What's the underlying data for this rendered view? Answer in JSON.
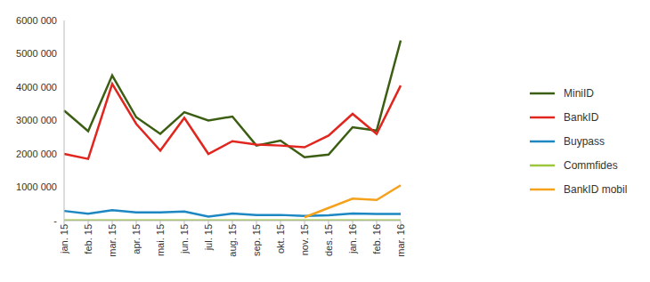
{
  "chart_data": {
    "type": "line",
    "categories": [
      "jan. 15",
      "feb. 15",
      "mar. 15",
      "apr. 15",
      "mai. 15",
      "jun. 15",
      "jul. 15",
      "aug. 15",
      "sep. 15",
      "okt. 15",
      "nov. 15",
      "des. 15",
      "jan. 16",
      "feb. 16",
      "mar. 16"
    ],
    "series": [
      {
        "name": "MiniID",
        "color": "#3b5e12",
        "values": [
          3300000,
          2680000,
          4350000,
          3100000,
          2600000,
          3250000,
          3000000,
          3120000,
          2250000,
          2400000,
          1900000,
          1980000,
          2800000,
          2700000,
          5400000
        ]
      },
      {
        "name": "BankID",
        "color": "#e0261f",
        "values": [
          2000000,
          1850000,
          4100000,
          2900000,
          2100000,
          3080000,
          2000000,
          2380000,
          2280000,
          2250000,
          2200000,
          2550000,
          3200000,
          2600000,
          4050000
        ]
      },
      {
        "name": "Buypass",
        "color": "#1d87c2",
        "values": [
          290000,
          210000,
          310000,
          250000,
          250000,
          270000,
          120000,
          210000,
          170000,
          170000,
          140000,
          160000,
          210000,
          200000,
          200000
        ]
      },
      {
        "name": "Commfides",
        "color": "#9cc63d",
        "values": [
          10000,
          10000,
          10000,
          10000,
          10000,
          10000,
          10000,
          10000,
          10000,
          10000,
          10000,
          10000,
          10000,
          10000,
          10000
        ]
      },
      {
        "name": "BankID mobil",
        "color": "#f6a11c",
        "values": [
          null,
          null,
          null,
          null,
          null,
          null,
          null,
          null,
          null,
          null,
          100000,
          380000,
          660000,
          620000,
          1060000
        ]
      }
    ],
    "ylim": [
      0,
      6000000
    ],
    "yticks": [
      {
        "value": 0,
        "label": "-"
      },
      {
        "value": 1000000,
        "label": "1000 000"
      },
      {
        "value": 2000000,
        "label": "2000 000"
      },
      {
        "value": 3000000,
        "label": "3000 000"
      },
      {
        "value": 4000000,
        "label": "4000 000"
      },
      {
        "value": 5000000,
        "label": "5000 000"
      },
      {
        "value": 6000000,
        "label": "6000 000"
      }
    ],
    "grid": false,
    "legend": "right"
  }
}
